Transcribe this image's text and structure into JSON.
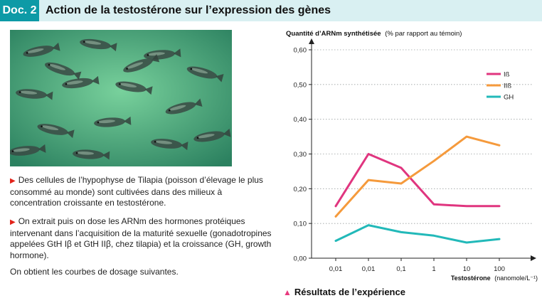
{
  "header": {
    "doc_tag": "Doc. 2",
    "title": "Action de la testostérone sur l’expression des gènes"
  },
  "text": {
    "para1": "Des cellules de l’hypophyse de Tilapia (poisson d’élevage le plus consommé au monde) sont cultivées dans des milieux à concentration croissante en testostérone.",
    "para2": "On extrait puis on dose les ARNm des hormones protéiques intervenant dans l’acquisition de la maturité sexuelle (gonadotropines appelées GtH Iβ et GtH IIβ, chez tilapia) et la croissance (GH, growth hormone).",
    "para3": "On obtient les courbes de dosage suivantes."
  },
  "caption": "Résultats de l’expérience",
  "colors": {
    "accent": "#0d9aa6",
    "header_bg": "#d9f0f2",
    "bullet": "#e2231a"
  },
  "chart_data": {
    "type": "line",
    "ylabel_bold": "Quantité d’ARNm synthétisée",
    "ylabel_note": "(% par rapport au témoin)",
    "xlabel_bold": "Testostérone",
    "xlabel_note": "(nanomole/L⁻¹)",
    "categories": [
      "0,01",
      "0,01",
      "0,1",
      "1",
      "10",
      "100"
    ],
    "yticks": [
      "0,00",
      "0,10",
      "0,20",
      "0,30",
      "0,40",
      "0,50",
      "0,60"
    ],
    "ylim": [
      0,
      0.6
    ],
    "grid": true,
    "legend_position": "top-right",
    "series": [
      {
        "name": "Iß",
        "color": "#e0357f",
        "values": [
          0.15,
          0.3,
          0.26,
          0.155,
          0.15,
          0.15
        ]
      },
      {
        "name": "IIß",
        "color": "#f59a3c",
        "values": [
          0.12,
          0.225,
          0.215,
          0.28,
          0.35,
          0.325
        ]
      },
      {
        "name": "GH",
        "color": "#22b9b9",
        "values": [
          0.05,
          0.095,
          0.075,
          0.065,
          0.045,
          0.055
        ]
      }
    ]
  }
}
